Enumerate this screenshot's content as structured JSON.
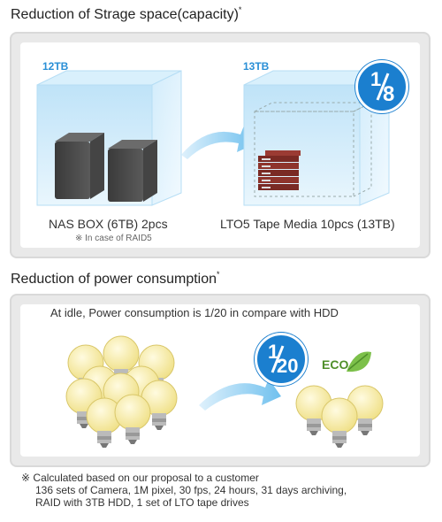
{
  "storage": {
    "title": "Reduction of Strage space(capacity)",
    "title_mark": "*",
    "left_capacity": "12TB",
    "right_capacity": "13TB",
    "ratio_badge": {
      "num": "1",
      "den": "8"
    },
    "left_caption": "NAS BOX (6TB) 2pcs",
    "left_note": "※ In case of RAID5",
    "right_caption": "LTO5 Tape Media 10pcs (13TB)"
  },
  "power": {
    "title": "Reduction of power consumption",
    "title_mark": "*",
    "headline": "At idle, Power consumption is 1/20 in compare with HDD",
    "ratio_badge": {
      "num": "1",
      "den": "20"
    },
    "eco_label": "ECO"
  },
  "footnote": {
    "mark": "※",
    "line1": "Calculated based on our proposal to a customer",
    "line2": "136 sets of Camera, 1M pixel, 30 fps, 24 hours, 31 days archiving,",
    "line3": "RAID with 3TB HDD, 1 set of LTO tape drives"
  },
  "colors": {
    "accent_blue": "#1b7fcf",
    "cube_blue": "#a9d8f5",
    "bulb_yellow": "#f7eca0",
    "panel_gray": "#e9e9e9"
  }
}
